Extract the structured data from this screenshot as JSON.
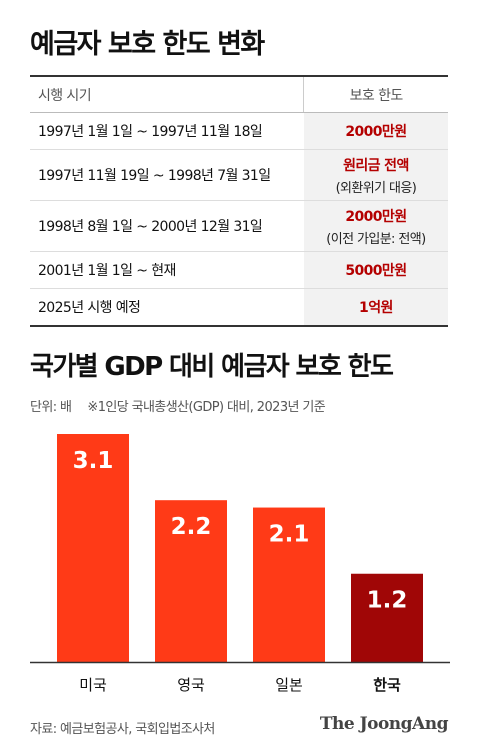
{
  "section1": {
    "title": "예금자 보호 한도 변화",
    "headers": [
      "시행 시기",
      "보호 한도"
    ],
    "rows": [
      {
        "period": "1997년 1월 1일 ~ 1997년 11월 18일",
        "limit": "2000만원",
        "note": ""
      },
      {
        "period": "1997년 11월 19일 ~ 1998년 7월 31일",
        "limit": "원리금 전액",
        "note": "(외환위기 대응)"
      },
      {
        "period": "1998년 8월 1일 ~ 2000년 12월 31일",
        "limit": "2000만원",
        "note": "(이전 가입분: 전액)"
      },
      {
        "period": "2001년 1월 1일 ~ 현재",
        "limit": "5000만원",
        "note": ""
      },
      {
        "period": "2025년 시행 예정",
        "limit": "1억원",
        "note": ""
      }
    ]
  },
  "section2": {
    "title": "국가별 GDP 대비 예금자 보호 한도",
    "unit": "단위: 배",
    "note": "※1인당 국내총생산(GDP) 대비, 2023년 기준"
  },
  "chart_data": {
    "type": "bar",
    "categories": [
      "미국",
      "영국",
      "일본",
      "한국"
    ],
    "values": [
      3.1,
      2.2,
      2.1,
      1.2
    ],
    "value_labels": [
      "3.1",
      "2.2",
      "2.1",
      "1.2"
    ],
    "title": "국가별 GDP 대비 예금자 보호 한도",
    "ylabel": "단위: 배",
    "ylim": [
      0,
      3.1
    ],
    "grid": false,
    "colors": [
      "#ff3a17",
      "#ff3a17",
      "#ff3a17",
      "#a00606"
    ],
    "highlight_index": 3
  },
  "footer": {
    "source": "자료: 예금보험공사, 국회입법조사처",
    "brand": "The JoongAng"
  }
}
